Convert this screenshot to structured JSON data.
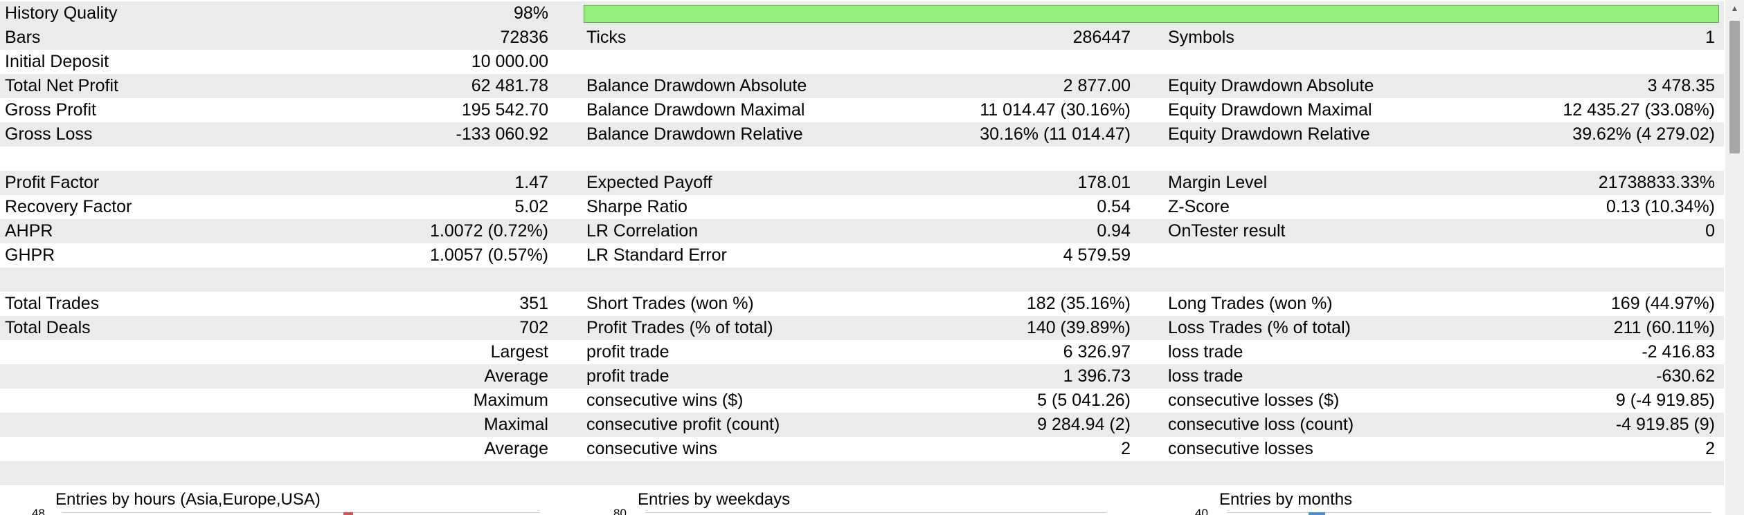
{
  "report": {
    "history_quality": {
      "label": "History Quality",
      "value": "98%",
      "fraction": 0.98,
      "bar_color": "#95f07c"
    },
    "rows": [
      {
        "shade": true,
        "l1": "Bars",
        "v1": "72836",
        "l2": "Ticks",
        "v2": "286447",
        "l3": "Symbols",
        "v3": "1"
      },
      {
        "shade": false,
        "l1": "Initial Deposit",
        "v1": "10 000.00",
        "l2": "",
        "v2": "",
        "l3": "",
        "v3": ""
      },
      {
        "shade": true,
        "l1": "Total Net Profit",
        "v1": "62 481.78",
        "l2": "Balance Drawdown Absolute",
        "v2": "2 877.00",
        "l3": "Equity Drawdown Absolute",
        "v3": "3 478.35"
      },
      {
        "shade": false,
        "l1": "Gross Profit",
        "v1": "195 542.70",
        "l2": "Balance Drawdown Maximal",
        "v2": "11 014.47 (30.16%)",
        "l3": "Equity Drawdown Maximal",
        "v3": "12 435.27 (33.08%)"
      },
      {
        "shade": true,
        "l1": "Gross Loss",
        "v1": "-133 060.92",
        "l2": "Balance Drawdown Relative",
        "v2": "30.16% (11 014.47)",
        "l3": "Equity Drawdown Relative",
        "v3": "39.62% (4 279.02)"
      },
      {
        "shade": false,
        "l1": "",
        "v1": "",
        "l2": "",
        "v2": "",
        "l3": "",
        "v3": ""
      },
      {
        "shade": true,
        "l1": "Profit Factor",
        "v1": "1.47",
        "l2": "Expected Payoff",
        "v2": "178.01",
        "l3": "Margin Level",
        "v3": "21738833.33%"
      },
      {
        "shade": false,
        "l1": "Recovery Factor",
        "v1": "5.02",
        "l2": "Sharpe Ratio",
        "v2": "0.54",
        "l3": "Z-Score",
        "v3": "0.13 (10.34%)"
      },
      {
        "shade": true,
        "l1": "AHPR",
        "v1": "1.0072 (0.72%)",
        "l2": "LR Correlation",
        "v2": "0.94",
        "l3": "OnTester result",
        "v3": "0"
      },
      {
        "shade": false,
        "l1": "GHPR",
        "v1": "1.0057 (0.57%)",
        "l2": "LR Standard Error",
        "v2": "4 579.59",
        "l3": "",
        "v3": ""
      },
      {
        "shade": true,
        "l1": "",
        "v1": "",
        "l2": "",
        "v2": "",
        "l3": "",
        "v3": ""
      },
      {
        "shade": false,
        "l1": "Total Trades",
        "v1": "351",
        "l2": "Short Trades (won %)",
        "v2": "182 (35.16%)",
        "l3": "Long Trades (won %)",
        "v3": "169 (44.97%)"
      },
      {
        "shade": true,
        "l1": "Total Deals",
        "v1": "702",
        "l2": "Profit Trades (% of total)",
        "v2": "140 (39.89%)",
        "l3": "Loss Trades (% of total)",
        "v3": "211 (60.11%)"
      },
      {
        "shade": false,
        "sub": "Largest",
        "l2": "profit trade",
        "v2": "6 326.97",
        "l3": "loss trade",
        "v3": "-2 416.83"
      },
      {
        "shade": true,
        "sub": "Average",
        "l2": "profit trade",
        "v2": "1 396.73",
        "l3": "loss trade",
        "v3": "-630.62"
      },
      {
        "shade": false,
        "sub": "Maximum",
        "l2": "consecutive wins ($)",
        "v2": "5 (5 041.26)",
        "l3": "consecutive losses ($)",
        "v3": "9 (-4 919.85)"
      },
      {
        "shade": true,
        "sub": "Maximal",
        "l2": "consecutive profit (count)",
        "v2": "9 284.94 (2)",
        "l3": "consecutive loss (count)",
        "v3": "-4 919.85 (9)"
      },
      {
        "shade": false,
        "sub": "Average",
        "l2": "consecutive wins",
        "v2": "2",
        "l3": "consecutive losses",
        "v3": "2"
      },
      {
        "shade": true,
        "l1": "",
        "v1": "",
        "l2": "",
        "v2": "",
        "l3": "",
        "v3": ""
      }
    ]
  },
  "charts": [
    {
      "title": "Entries by hours (Asia,Europe,USA)",
      "axis_top": "48",
      "mark_color": "#e05050"
    },
    {
      "title": "Entries by weekdays",
      "axis_top": "80",
      "mark_color": ""
    },
    {
      "title": "Entries by months",
      "axis_top": "40",
      "mark_color": "#4a90d9"
    }
  ]
}
